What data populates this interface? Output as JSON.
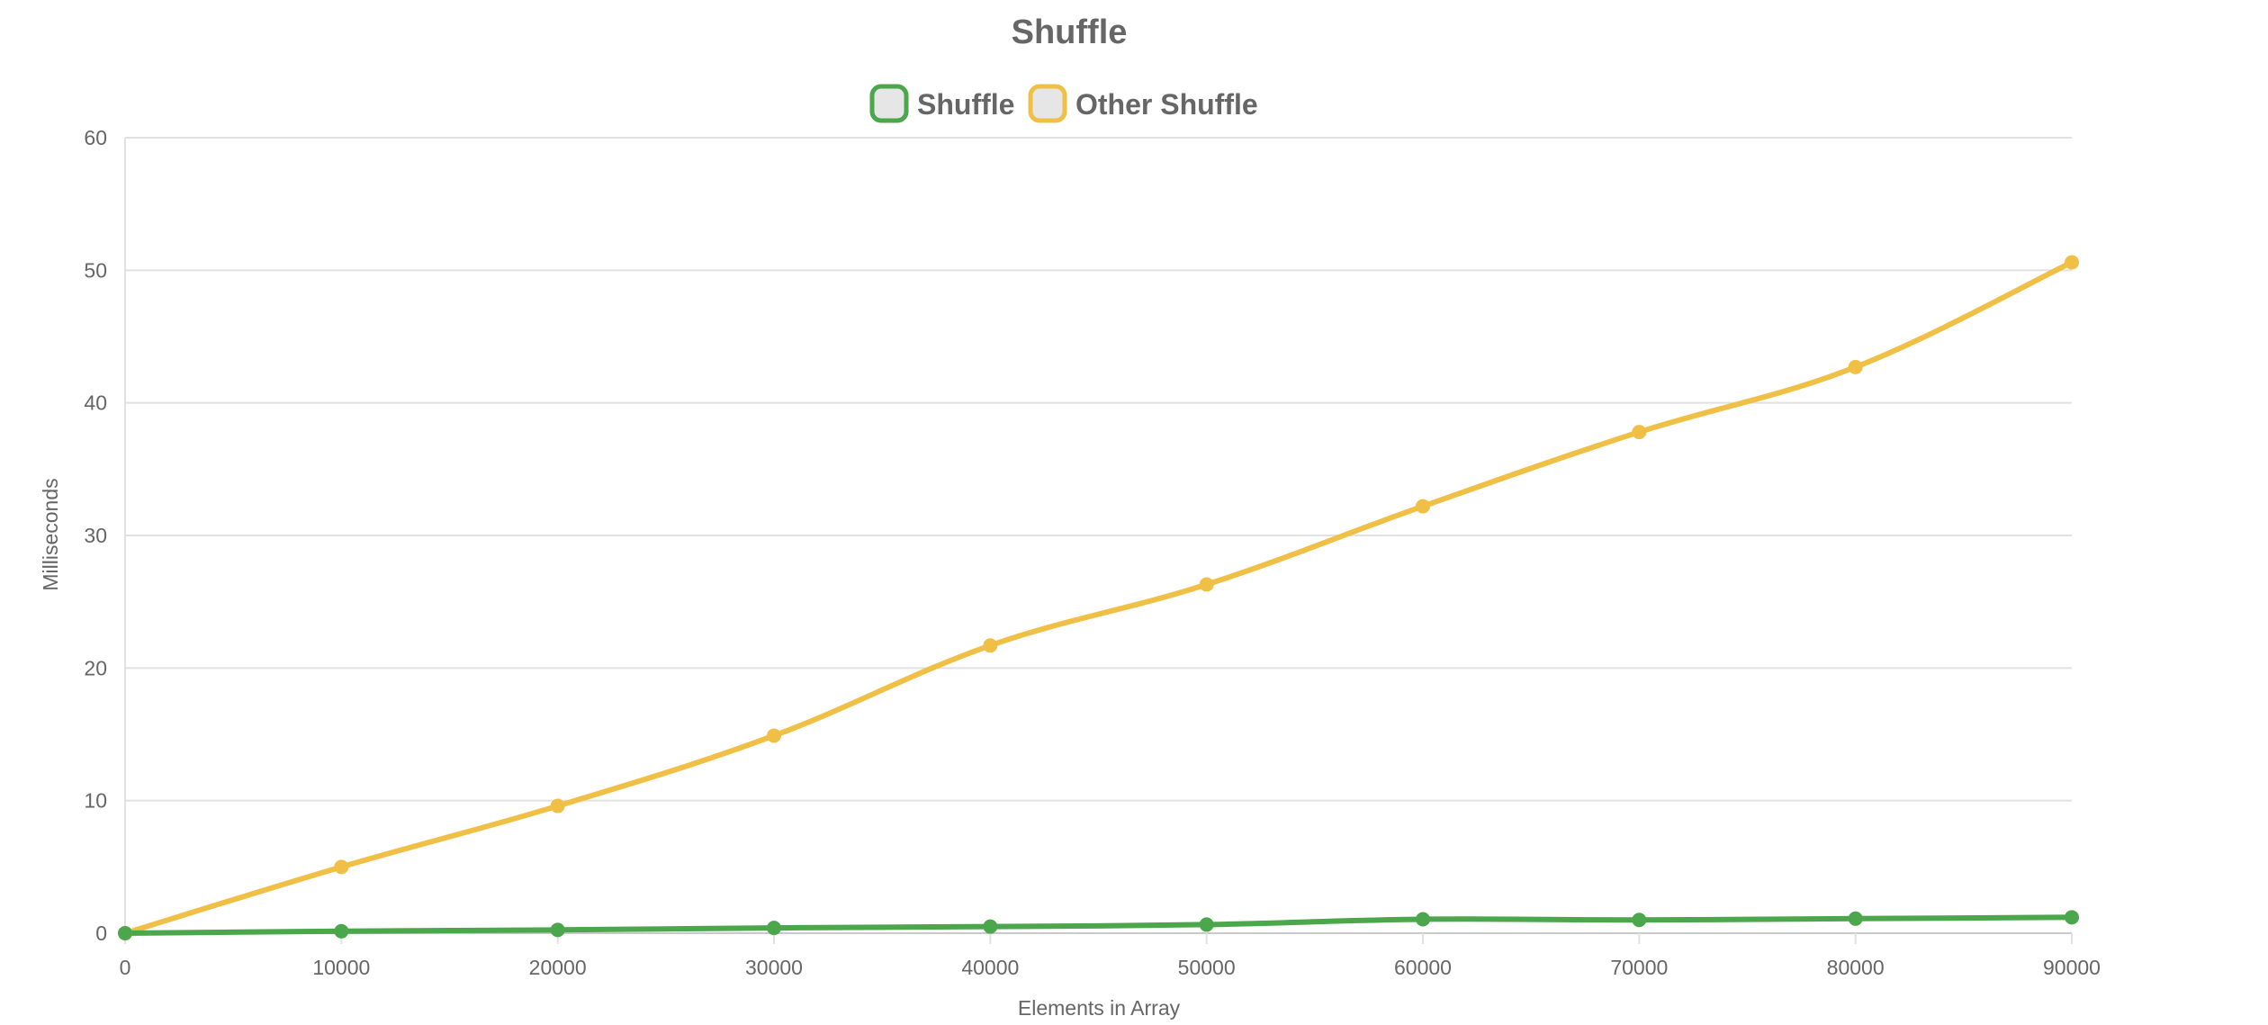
{
  "chart_data": {
    "type": "line",
    "title": "Shuffle",
    "xlabel": "Elements in Array",
    "ylabel": "Milliseconds",
    "x": [
      0,
      10000,
      20000,
      30000,
      40000,
      50000,
      60000,
      70000,
      80000,
      90000
    ],
    "x_ticks": [
      "0",
      "10000",
      "20000",
      "30000",
      "40000",
      "50000",
      "60000",
      "70000",
      "80000",
      "90000"
    ],
    "y_ticks": [
      "0",
      "10",
      "20",
      "30",
      "40",
      "50",
      "60"
    ],
    "ylim": [
      0,
      60
    ],
    "xlim": [
      0,
      90000
    ],
    "grid": true,
    "legend_position": "top",
    "series": [
      {
        "name": "Shuffle",
        "color": "#4ca64c",
        "values": [
          0.0,
          0.15,
          0.25,
          0.4,
          0.5,
          0.65,
          1.05,
          1.0,
          1.1,
          1.2
        ]
      },
      {
        "name": "Other Shuffle",
        "color": "#f0bf45",
        "values": [
          0.0,
          5.0,
          9.6,
          14.9,
          21.7,
          26.3,
          32.2,
          37.8,
          42.7,
          50.6
        ]
      }
    ]
  },
  "legend_swatch_fill": "#e6e6e6"
}
